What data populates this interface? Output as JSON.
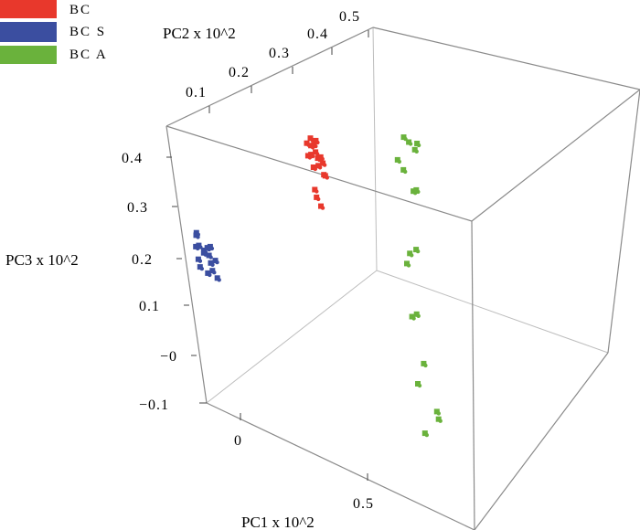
{
  "chart_data": {
    "type": "scatter3d",
    "axes": {
      "x": {
        "label": "PC1 x 10^2",
        "ticks": [
          "0",
          "0.5"
        ]
      },
      "y": {
        "label": "PC2 x 10^2",
        "ticks": [
          "0.1",
          "0.2",
          "0.3",
          "0.4",
          "0.5"
        ]
      },
      "z": {
        "label": "PC3 x 10^2",
        "ticks": [
          "0.4",
          "0.3",
          "0.2",
          "0.1",
          "−0",
          "−0.1"
        ]
      }
    },
    "legend": {
      "placement": "top-left",
      "entries": [
        {
          "name": "BC",
          "color": "#e8382c"
        },
        {
          "name": "BC S",
          "color": "#3b4ea0"
        },
        {
          "name": "BC A",
          "color": "#6ab23c"
        }
      ]
    },
    "series": [
      {
        "name": "BC",
        "color": "#e8382c",
        "points": [
          [
            0.32,
            0.33,
            0.42
          ],
          [
            0.33,
            0.33,
            0.41
          ],
          [
            0.31,
            0.34,
            0.4
          ],
          [
            0.34,
            0.32,
            0.4
          ],
          [
            0.32,
            0.32,
            0.39
          ],
          [
            0.33,
            0.34,
            0.38
          ],
          [
            0.35,
            0.33,
            0.39
          ],
          [
            0.3,
            0.33,
            0.38
          ],
          [
            0.33,
            0.31,
            0.37
          ],
          [
            0.36,
            0.32,
            0.36
          ],
          [
            0.34,
            0.35,
            0.37
          ],
          [
            0.32,
            0.35,
            0.36
          ],
          [
            0.3,
            0.34,
            0.31
          ],
          [
            0.31,
            0.33,
            0.3
          ],
          [
            0.33,
            0.32,
            0.29
          ],
          [
            0.35,
            0.34,
            0.35
          ],
          [
            0.31,
            0.32,
            0.41
          ],
          [
            0.34,
            0.33,
            0.42
          ]
        ]
      },
      {
        "name": "BC S",
        "color": "#3b4ea0",
        "points": [
          [
            0.02,
            0.05,
            0.23
          ],
          [
            0.01,
            0.06,
            0.22
          ],
          [
            0.03,
            0.04,
            0.21
          ],
          [
            0.04,
            0.05,
            0.2
          ],
          [
            0.05,
            0.06,
            0.19
          ],
          [
            0.03,
            0.06,
            0.19
          ],
          [
            0.06,
            0.05,
            0.18
          ],
          [
            0.07,
            0.04,
            0.17
          ],
          [
            0.05,
            0.04,
            0.16
          ],
          [
            0.02,
            0.04,
            0.18
          ],
          [
            0.04,
            0.07,
            0.2
          ],
          [
            0.06,
            0.06,
            0.21
          ],
          [
            0.08,
            0.05,
            0.19
          ],
          [
            0.03,
            0.03,
            0.17
          ],
          [
            0.07,
            0.06,
            0.15
          ],
          [
            0.01,
            0.05,
            0.2
          ]
        ]
      },
      {
        "name": "BC A",
        "color": "#6ab23c",
        "points": [
          [
            0.55,
            0.52,
            0.43
          ],
          [
            0.56,
            0.53,
            0.42
          ],
          [
            0.6,
            0.52,
            0.43
          ],
          [
            0.58,
            0.53,
            0.41
          ],
          [
            0.52,
            0.51,
            0.38
          ],
          [
            0.53,
            0.52,
            0.36
          ],
          [
            0.57,
            0.52,
            0.33
          ],
          [
            0.55,
            0.53,
            0.32
          ],
          [
            0.56,
            0.45,
            0.22
          ],
          [
            0.58,
            0.46,
            0.23
          ],
          [
            0.55,
            0.44,
            0.2
          ],
          [
            0.59,
            0.4,
            0.12
          ],
          [
            0.57,
            0.4,
            0.11
          ],
          [
            0.62,
            0.36,
            0.04
          ],
          [
            0.6,
            0.34,
            0.0
          ],
          [
            0.66,
            0.34,
            -0.04
          ],
          [
            0.67,
            0.33,
            -0.05
          ],
          [
            0.63,
            0.3,
            -0.08
          ]
        ]
      }
    ]
  }
}
